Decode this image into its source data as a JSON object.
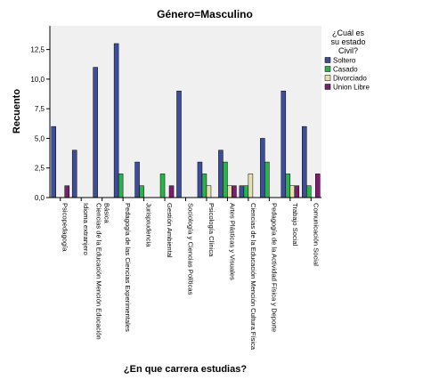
{
  "chart_data": {
    "type": "bar",
    "title": "Género=Masculino",
    "xlabel": "¿En que carrera estudias?",
    "ylabel": "Recuento",
    "ylim": [
      0,
      14.5
    ],
    "yticks": [
      "0,0",
      "2,5",
      "5,0",
      "7,5",
      "10,0",
      "12,5"
    ],
    "ytick_values": [
      0,
      2.5,
      5,
      7.5,
      10,
      12.5
    ],
    "grid": false,
    "legend_position": "right",
    "legend_title": [
      "¿Cuál es",
      "su estado",
      "Civil?"
    ],
    "categories": [
      [
        "Psicopedagogía"
      ],
      [
        "Idioma extranjero"
      ],
      [
        "Ciencias de la Educación Mención Educación",
        "Básica"
      ],
      [
        "Pedagogía de las Ciencias Experimentales"
      ],
      [
        "Jurisprudencia"
      ],
      [
        "Gestión Ambiental"
      ],
      [
        "Sociología y Ciencias Políticas"
      ],
      [
        "Psicología Clínica"
      ],
      [
        "Artes Plásticas y Visuales"
      ],
      [
        "Ciencias de la Educación Mención Cultura Física"
      ],
      [
        "Pedagogía de la Actividad Física y Deporte"
      ],
      [
        "Trabajo Social"
      ],
      [
        "Comunicación Social"
      ]
    ],
    "series": [
      {
        "name": "Soltero",
        "color": "#3e4d9a",
        "values": [
          6,
          4,
          11,
          13,
          3,
          0,
          9,
          3,
          4,
          1,
          5,
          9,
          6
        ]
      },
      {
        "name": "Casado",
        "color": "#2bb24c",
        "values": [
          0,
          0,
          0,
          2,
          1,
          2,
          0,
          2,
          3,
          1,
          3,
          2,
          1
        ]
      },
      {
        "name": "Divorciado",
        "color": "#e8e0b0",
        "values": [
          0,
          0,
          0,
          0,
          0,
          0,
          0,
          1,
          1,
          2,
          0,
          1,
          0
        ]
      },
      {
        "name": "Union Libre",
        "color": "#7b1e6e",
        "values": [
          1,
          0,
          0,
          0,
          0,
          1,
          0,
          0,
          1,
          0,
          0,
          1,
          2
        ]
      }
    ]
  }
}
